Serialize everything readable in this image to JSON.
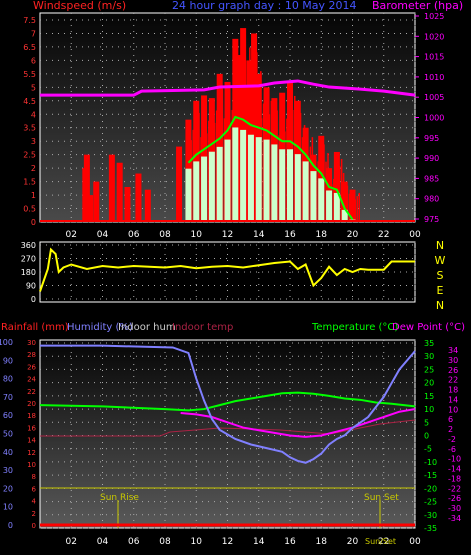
{
  "chart_data": [
    {
      "type": "bar",
      "title": "24 hour graph day : 10 May 2014",
      "ylabel_left": "Windspeed (m/s)",
      "ylabel_right": "Barometer (hpa)",
      "x_ticks": [
        "02",
        "04",
        "06",
        "08",
        "10",
        "12",
        "14",
        "16",
        "18",
        "20",
        "22",
        "00"
      ],
      "y_left_ticks": [
        "7.5",
        "7",
        "6.5",
        "6",
        "5.5",
        "5",
        "4.5",
        "4",
        "3.5",
        "3",
        "2.5",
        "2",
        "1.5",
        "1",
        "0.5",
        "0"
      ],
      "y_left_range": [
        0,
        7.5
      ],
      "y_right_ticks": [
        "1025",
        "1020",
        "1015",
        "1010",
        "1005",
        "1000",
        "995",
        "990",
        "985",
        "980",
        "975"
      ],
      "y_right_range": [
        975,
        1025
      ],
      "colors": {
        "gust": "#ff0000",
        "average": "#00ff00",
        "wind": "#ccffcc",
        "barometer": "#ff00ff"
      },
      "series": {
        "gust": [
          [
            2.9,
            2.0
          ],
          [
            3.0,
            2.5
          ],
          [
            3.2,
            1.0
          ],
          [
            3.6,
            1.5
          ],
          [
            4.6,
            2.5
          ],
          [
            5.1,
            2.2
          ],
          [
            5.6,
            1.3
          ],
          [
            6.3,
            1.8
          ],
          [
            6.9,
            1.2
          ],
          [
            8.9,
            2.8
          ],
          [
            9.5,
            3.8
          ],
          [
            10.0,
            4.5
          ],
          [
            10.5,
            4.7
          ],
          [
            11.0,
            4.6
          ],
          [
            11.5,
            5.5
          ],
          [
            12.0,
            5.2
          ],
          [
            12.5,
            6.8
          ],
          [
            12.8,
            6.2
          ],
          [
            13.0,
            7.2
          ],
          [
            13.4,
            6.0
          ],
          [
            13.7,
            7.0
          ],
          [
            14.0,
            5.5
          ],
          [
            14.5,
            5.0
          ],
          [
            15.0,
            4.6
          ],
          [
            15.5,
            4.8
          ],
          [
            16.0,
            5.2
          ],
          [
            16.5,
            4.5
          ],
          [
            17.0,
            3.5
          ],
          [
            17.5,
            2.5
          ],
          [
            18.0,
            3.2
          ],
          [
            18.5,
            2.0
          ],
          [
            19.0,
            2.6
          ],
          [
            19.5,
            1.5
          ],
          [
            20.0,
            1.2
          ]
        ],
        "average": [
          [
            9.5,
            2.2
          ],
          [
            10.0,
            2.5
          ],
          [
            10.5,
            2.7
          ],
          [
            11.0,
            2.9
          ],
          [
            11.5,
            3.1
          ],
          [
            12.0,
            3.4
          ],
          [
            12.5,
            3.9
          ],
          [
            13.0,
            3.8
          ],
          [
            13.5,
            3.6
          ],
          [
            14.0,
            3.5
          ],
          [
            14.5,
            3.4
          ],
          [
            15.0,
            3.2
          ],
          [
            15.5,
            3.0
          ],
          [
            16.0,
            3.0
          ],
          [
            16.5,
            2.8
          ],
          [
            17.0,
            2.5
          ],
          [
            17.5,
            2.1
          ],
          [
            18.0,
            1.8
          ],
          [
            18.5,
            1.3
          ],
          [
            19.0,
            1.2
          ],
          [
            19.5,
            0.5
          ],
          [
            20.0,
            0.1
          ]
        ],
        "barometer": [
          [
            0,
            1005.5
          ],
          [
            6.0,
            1005.5
          ],
          [
            6.5,
            1006.5
          ],
          [
            10.5,
            1006.8
          ],
          [
            11.5,
            1007.5
          ],
          [
            14.0,
            1007.8
          ],
          [
            15.0,
            1008.5
          ],
          [
            16.5,
            1009.0
          ],
          [
            17.5,
            1008.2
          ],
          [
            18.5,
            1007.5
          ],
          [
            20.5,
            1007.0
          ],
          [
            22.0,
            1006.5
          ],
          [
            24,
            1005.5
          ]
        ]
      }
    },
    {
      "type": "line",
      "y_ticks": [
        "360",
        "270",
        "180",
        "90",
        "0"
      ],
      "y_range": [
        0,
        360
      ],
      "direction_labels": [
        "N",
        "W",
        "S",
        "E",
        "N"
      ],
      "x_ticks": [
        "02",
        "04",
        "06",
        "08",
        "10",
        "12",
        "14",
        "16",
        "18",
        "20",
        "22",
        "00"
      ],
      "color": "#ffff00",
      "series": [
        [
          0,
          50
        ],
        [
          0.5,
          200
        ],
        [
          0.7,
          330
        ],
        [
          1.0,
          300
        ],
        [
          1.2,
          180
        ],
        [
          1.5,
          210
        ],
        [
          2.0,
          230
        ],
        [
          3.0,
          200
        ],
        [
          4.0,
          220
        ],
        [
          5.0,
          210
        ],
        [
          6.0,
          220
        ],
        [
          7.0,
          215
        ],
        [
          8.0,
          210
        ],
        [
          9.0,
          220
        ],
        [
          10.0,
          205
        ],
        [
          11.0,
          215
        ],
        [
          12.0,
          220
        ],
        [
          13.0,
          210
        ],
        [
          14.0,
          225
        ],
        [
          15.0,
          240
        ],
        [
          16.0,
          250
        ],
        [
          16.5,
          200
        ],
        [
          17.0,
          230
        ],
        [
          17.5,
          90
        ],
        [
          18.0,
          140
        ],
        [
          18.5,
          215
        ],
        [
          19.0,
          160
        ],
        [
          19.5,
          200
        ],
        [
          20.0,
          180
        ],
        [
          20.5,
          200
        ],
        [
          21.0,
          195
        ],
        [
          22.0,
          195
        ],
        [
          22.5,
          250
        ],
        [
          24.0,
          250
        ]
      ]
    },
    {
      "type": "line",
      "ylabel_rain": "Rainfall (mm)",
      "ylabel_humidity": "Humidity (%)",
      "ylabel_indoor_hum": "Indoor hum",
      "ylabel_indoor_temp": "Indoor temp",
      "ylabel_temperature": "Temperature (°C)",
      "ylabel_dew": "Dew Point (°C)",
      "annotations": [
        "Sun Rise",
        "Sun Set",
        "Sun/Set"
      ],
      "x_ticks": [
        "02",
        "04",
        "06",
        "08",
        "10",
        "12",
        "14",
        "16",
        "18",
        "20",
        "22",
        "00"
      ],
      "y_humidity_ticks": [
        "100",
        "90",
        "80",
        "70",
        "60",
        "50",
        "40",
        "30",
        "20",
        "10",
        "0"
      ],
      "y_rain_ticks": [
        "30",
        "28",
        "26",
        "24",
        "22",
        "20",
        "18",
        "16",
        "14",
        "12",
        "10",
        "8",
        "6",
        "4",
        "2",
        "0"
      ],
      "y_temp_ticks": [
        "35",
        "30",
        "25",
        "20",
        "15",
        "10",
        "5",
        "0",
        "-5",
        "-10",
        "-15",
        "-20",
        "-25",
        "-30",
        "-35"
      ],
      "y_dew_ticks": [
        "34",
        "30",
        "26",
        "22",
        "18",
        "14",
        "10",
        "6",
        "2",
        "-2",
        "-6",
        "-10",
        "-14",
        "-18",
        "-22",
        "-26",
        "-30",
        "-34"
      ],
      "y_temp_range": [
        -35,
        35
      ],
      "colors": {
        "humidity": "#8080ff",
        "temperature": "#00ff00",
        "dew": "#ff00ff",
        "indoor": "#aa2244",
        "rain": "#ff0000",
        "sun": "#c8c800"
      },
      "series": {
        "humidity": [
          [
            0,
            98
          ],
          [
            4,
            98
          ],
          [
            8.5,
            97
          ],
          [
            9.5,
            94
          ],
          [
            10.0,
            80
          ],
          [
            10.5,
            68
          ],
          [
            11.0,
            58
          ],
          [
            11.5,
            52
          ],
          [
            12.5,
            47
          ],
          [
            13.5,
            44
          ],
          [
            14.5,
            42
          ],
          [
            15.5,
            40
          ],
          [
            16.0,
            37
          ],
          [
            16.5,
            35
          ],
          [
            17.0,
            34
          ],
          [
            17.5,
            36
          ],
          [
            18.0,
            39
          ],
          [
            18.5,
            44
          ],
          [
            19.0,
            47
          ],
          [
            19.5,
            49
          ],
          [
            20.0,
            53
          ],
          [
            21.0,
            59
          ],
          [
            22.0,
            70
          ],
          [
            23.0,
            85
          ],
          [
            24.0,
            95
          ]
        ],
        "temperature": [
          [
            0,
            11.5
          ],
          [
            4,
            11.0
          ],
          [
            8,
            10.0
          ],
          [
            9.5,
            9.5
          ],
          [
            10.5,
            10.0
          ],
          [
            11.5,
            11.5
          ],
          [
            12.5,
            13.0
          ],
          [
            13.5,
            14.0
          ],
          [
            14.5,
            15.0
          ],
          [
            15.5,
            16.0
          ],
          [
            16.5,
            16.2
          ],
          [
            17.5,
            15.8
          ],
          [
            18.5,
            15.0
          ],
          [
            19.5,
            14.0
          ],
          [
            20.5,
            13.5
          ],
          [
            21.5,
            12.5
          ],
          [
            22.5,
            12.0
          ],
          [
            24,
            11.0
          ]
        ],
        "dew": [
          [
            9.0,
            8.5
          ],
          [
            10.0,
            8.0
          ],
          [
            11.0,
            7.0
          ],
          [
            12.0,
            5.0
          ],
          [
            13.0,
            3.0
          ],
          [
            14.0,
            2.0
          ],
          [
            15.0,
            1.0
          ],
          [
            16.0,
            0.0
          ],
          [
            17.0,
            -0.5
          ],
          [
            18.0,
            0.0
          ],
          [
            19.0,
            1.5
          ],
          [
            20.0,
            3.0
          ],
          [
            21.0,
            5.0
          ],
          [
            22.0,
            7.0
          ],
          [
            23.0,
            9.0
          ],
          [
            24.0,
            10.0
          ]
        ]
      }
    }
  ]
}
